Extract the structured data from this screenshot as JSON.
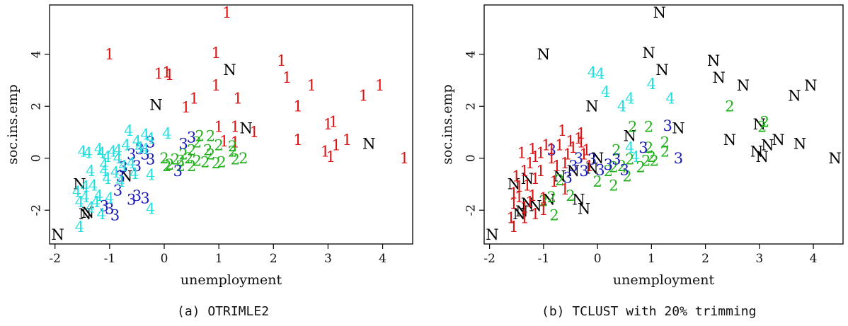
{
  "colors": {
    "1": "#dd1111",
    "2": "#22b11c",
    "3": "#1a1ab8",
    "4": "#22e0e0",
    "N": "#000000"
  },
  "captions": {
    "a": "(a)  OTRIMLE2",
    "b": "(b)  TCLUST with 20% trimming"
  },
  "chart_data": [
    {
      "type": "scatter",
      "title": "",
      "xlabel": "unemployment",
      "ylabel": "soc.ins.emp",
      "xlim": [
        -2.1,
        4.55
      ],
      "ylim": [
        -3.3,
        5.9
      ],
      "xticks": [
        -2,
        -1,
        0,
        1,
        2,
        3,
        4
      ],
      "yticks": [
        -2,
        0,
        2,
        4
      ],
      "grid": false,
      "marker": "cluster label text",
      "points": [
        [
          1.15,
          5.6,
          "1"
        ],
        [
          -1.0,
          4.0,
          "1"
        ],
        [
          0.95,
          4.05,
          "1"
        ],
        [
          2.15,
          3.75,
          "1"
        ],
        [
          -0.1,
          3.25,
          "1"
        ],
        [
          0.05,
          3.3,
          "1"
        ],
        [
          0.1,
          3.2,
          "1"
        ],
        [
          2.25,
          3.1,
          "1"
        ],
        [
          0.95,
          2.8,
          "1"
        ],
        [
          2.7,
          2.8,
          "1"
        ],
        [
          3.95,
          2.8,
          "1"
        ],
        [
          0.55,
          2.3,
          "1"
        ],
        [
          1.35,
          2.3,
          "1"
        ],
        [
          3.65,
          2.4,
          "1"
        ],
        [
          0.4,
          1.95,
          "1"
        ],
        [
          2.45,
          2.0,
          "1"
        ],
        [
          1.0,
          1.2,
          "1"
        ],
        [
          1.3,
          1.2,
          "1"
        ],
        [
          3.0,
          1.3,
          "1"
        ],
        [
          3.1,
          1.4,
          "1"
        ],
        [
          1.65,
          1.0,
          "1"
        ],
        [
          1.1,
          0.65,
          "1"
        ],
        [
          1.3,
          0.6,
          "1"
        ],
        [
          2.45,
          0.7,
          "1"
        ],
        [
          3.35,
          0.7,
          "1"
        ],
        [
          3.15,
          0.5,
          "1"
        ],
        [
          2.95,
          0.25,
          "1"
        ],
        [
          3.05,
          0.05,
          "1"
        ],
        [
          4.4,
          0.0,
          "1"
        ],
        [
          1.2,
          3.4,
          "N"
        ],
        [
          -0.15,
          2.05,
          "N"
        ],
        [
          1.5,
          1.15,
          "N"
        ],
        [
          3.75,
          0.55,
          "N"
        ],
        [
          -1.55,
          -1.0,
          "N"
        ],
        [
          -0.7,
          -0.7,
          "N"
        ],
        [
          -1.4,
          -2.1,
          "N"
        ],
        [
          -1.45,
          -2.15,
          "N"
        ],
        [
          -1.95,
          -2.95,
          "N"
        ],
        [
          0.6,
          0.6,
          "2"
        ],
        [
          0.65,
          0.85,
          "2"
        ],
        [
          0.85,
          0.85,
          "2"
        ],
        [
          1.0,
          0.5,
          "2"
        ],
        [
          1.25,
          0.45,
          "2"
        ],
        [
          1.25,
          0.25,
          "2"
        ],
        [
          0.5,
          0.3,
          "2"
        ],
        [
          0.8,
          0.3,
          "2"
        ],
        [
          0.35,
          0.15,
          "2"
        ],
        [
          0.45,
          0.0,
          "2"
        ],
        [
          0.6,
          -0.1,
          "2"
        ],
        [
          0.75,
          -0.15,
          "2"
        ],
        [
          0.3,
          -0.1,
          "2"
        ],
        [
          0.95,
          -0.2,
          "2"
        ],
        [
          1.05,
          -0.15,
          "2"
        ],
        [
          0.3,
          -0.3,
          "2"
        ],
        [
          0.5,
          -0.3,
          "2"
        ],
        [
          1.45,
          0.0,
          "2"
        ],
        [
          1.3,
          -0.05,
          "2"
        ],
        [
          0.05,
          -0.3,
          "2"
        ],
        [
          0.0,
          0.0,
          "2"
        ],
        [
          0.2,
          -0.05,
          "2"
        ],
        [
          0.85,
          0.15,
          "2"
        ],
        [
          0.1,
          -0.25,
          "2"
        ],
        [
          0.5,
          0.8,
          "3"
        ],
        [
          0.35,
          0.55,
          "3"
        ],
        [
          -0.25,
          0.6,
          "3"
        ],
        [
          -0.45,
          0.35,
          "3"
        ],
        [
          -0.35,
          0.15,
          "3"
        ],
        [
          -0.6,
          0.15,
          "3"
        ],
        [
          -0.25,
          -0.05,
          "3"
        ],
        [
          -0.75,
          -0.35,
          "3"
        ],
        [
          -0.5,
          -0.3,
          "3"
        ],
        [
          -0.8,
          -0.7,
          "3"
        ],
        [
          -0.85,
          -1.25,
          "3"
        ],
        [
          -0.5,
          -1.45,
          "3"
        ],
        [
          -0.35,
          -1.55,
          "3"
        ],
        [
          -0.6,
          -1.6,
          "3"
        ],
        [
          -1.1,
          -1.85,
          "3"
        ],
        [
          -1.0,
          -1.95,
          "3"
        ],
        [
          -0.9,
          -2.2,
          "3"
        ],
        [
          0.25,
          -0.5,
          "3"
        ],
        [
          -0.65,
          1.05,
          "4"
        ],
        [
          -0.35,
          0.9,
          "4"
        ],
        [
          0.05,
          0.95,
          "4"
        ],
        [
          -0.25,
          0.75,
          "4"
        ],
        [
          -0.5,
          0.65,
          "4"
        ],
        [
          -0.45,
          0.4,
          "4"
        ],
        [
          -0.7,
          0.5,
          "4"
        ],
        [
          -0.85,
          0.3,
          "4"
        ],
        [
          -0.95,
          0.25,
          "4"
        ],
        [
          -1.15,
          0.2,
          "4"
        ],
        [
          -1.2,
          0.35,
          "4"
        ],
        [
          -1.05,
          0.05,
          "4"
        ],
        [
          -1.4,
          0.2,
          "4"
        ],
        [
          -0.85,
          0.0,
          "4"
        ],
        [
          -0.6,
          -0.2,
          "4"
        ],
        [
          -0.75,
          -0.3,
          "4"
        ],
        [
          -1.1,
          -0.5,
          "4"
        ],
        [
          -1.35,
          -0.5,
          "4"
        ],
        [
          -1.05,
          -0.8,
          "4"
        ],
        [
          -0.8,
          -0.9,
          "4"
        ],
        [
          -1.3,
          -1.05,
          "4"
        ],
        [
          -1.45,
          -1.1,
          "4"
        ],
        [
          -1.2,
          -1.45,
          "4"
        ],
        [
          -1.45,
          -1.5,
          "4"
        ],
        [
          -1.0,
          -1.55,
          "4"
        ],
        [
          -1.25,
          -1.7,
          "4"
        ],
        [
          -1.55,
          -1.7,
          "4"
        ],
        [
          -1.35,
          -1.9,
          "4"
        ],
        [
          -1.15,
          -2.15,
          "4"
        ],
        [
          -1.55,
          -2.65,
          "4"
        ],
        [
          -0.25,
          -1.95,
          "4"
        ],
        [
          -0.55,
          -0.6,
          "4"
        ],
        [
          -0.25,
          -0.65,
          "4"
        ],
        [
          -1.5,
          0.25,
          "4"
        ],
        [
          -1.1,
          -0.25,
          "4"
        ],
        [
          -0.9,
          -0.55,
          "4"
        ],
        [
          -1.6,
          -1.3,
          "4"
        ],
        [
          -0.35,
          0.35,
          "4"
        ]
      ]
    },
    {
      "type": "scatter",
      "title": "",
      "xlabel": "unemployment",
      "ylabel": "soc.ins.emp",
      "xlim": [
        -2.1,
        4.55
      ],
      "ylim": [
        -3.3,
        5.9
      ],
      "xticks": [
        -2,
        -1,
        0,
        1,
        2,
        3,
        4
      ],
      "yticks": [
        -2,
        0,
        2,
        4
      ],
      "grid": false,
      "marker": "cluster label text",
      "points": [
        [
          1.15,
          5.6,
          "N"
        ],
        [
          -1.0,
          4.0,
          "N"
        ],
        [
          0.95,
          4.05,
          "N"
        ],
        [
          2.15,
          3.75,
          "N"
        ],
        [
          1.2,
          3.4,
          "N"
        ],
        [
          2.25,
          3.1,
          "N"
        ],
        [
          2.7,
          2.8,
          "N"
        ],
        [
          3.95,
          2.8,
          "N"
        ],
        [
          3.65,
          2.4,
          "N"
        ],
        [
          -0.1,
          2.0,
          "N"
        ],
        [
          3.0,
          1.3,
          "N"
        ],
        [
          0.6,
          0.85,
          "N"
        ],
        [
          1.5,
          1.15,
          "N"
        ],
        [
          2.45,
          0.7,
          "N"
        ],
        [
          3.35,
          0.7,
          "N"
        ],
        [
          3.15,
          0.5,
          "N"
        ],
        [
          2.95,
          0.25,
          "N"
        ],
        [
          3.05,
          0.05,
          "N"
        ],
        [
          3.75,
          0.55,
          "N"
        ],
        [
          4.4,
          0.0,
          "N"
        ],
        [
          0.0,
          0.0,
          "N"
        ],
        [
          -0.1,
          -0.4,
          "N"
        ],
        [
          -0.45,
          -0.5,
          "N"
        ],
        [
          -0.7,
          -0.7,
          "N"
        ],
        [
          -1.3,
          -0.8,
          "N"
        ],
        [
          -1.55,
          -1.0,
          "N"
        ],
        [
          -0.35,
          -1.6,
          "N"
        ],
        [
          -0.25,
          -1.95,
          "N"
        ],
        [
          -0.9,
          -1.6,
          "N"
        ],
        [
          -1.3,
          -1.75,
          "N"
        ],
        [
          -1.45,
          -2.15,
          "N"
        ],
        [
          -1.4,
          -2.05,
          "N"
        ],
        [
          -1.95,
          -2.95,
          "N"
        ],
        [
          -1.15,
          -1.85,
          "N"
        ],
        [
          0.05,
          3.25,
          "4"
        ],
        [
          -0.1,
          3.3,
          "4"
        ],
        [
          1.0,
          2.85,
          "4"
        ],
        [
          0.15,
          2.55,
          "4"
        ],
        [
          0.6,
          2.3,
          "4"
        ],
        [
          1.35,
          2.3,
          "4"
        ],
        [
          0.45,
          2.0,
          "4"
        ],
        [
          0.6,
          0.4,
          "4"
        ],
        [
          0.7,
          0.05,
          "4"
        ],
        [
          2.45,
          2.0,
          "2"
        ],
        [
          3.1,
          1.4,
          "2"
        ],
        [
          3.05,
          1.2,
          "2"
        ],
        [
          0.65,
          1.2,
          "2"
        ],
        [
          0.95,
          1.2,
          "2"
        ],
        [
          1.25,
          0.6,
          "2"
        ],
        [
          1.25,
          0.25,
          "2"
        ],
        [
          1.0,
          0.05,
          "2"
        ],
        [
          0.9,
          -0.1,
          "2"
        ],
        [
          0.6,
          -0.05,
          "2"
        ],
        [
          0.45,
          -0.3,
          "2"
        ],
        [
          0.8,
          -0.35,
          "2"
        ],
        [
          1.05,
          -0.1,
          "2"
        ],
        [
          0.35,
          0.3,
          "2"
        ],
        [
          0.55,
          -0.7,
          "2"
        ],
        [
          0.2,
          -0.5,
          "2"
        ],
        [
          0.3,
          -0.35,
          "2"
        ],
        [
          0.0,
          -0.9,
          "2"
        ],
        [
          0.3,
          -1.05,
          "2"
        ],
        [
          -0.5,
          -1.45,
          "2"
        ],
        [
          -0.85,
          -1.5,
          "2"
        ],
        [
          -0.8,
          -2.2,
          "2"
        ],
        [
          -1.0,
          -1.65,
          "2"
        ],
        [
          0.95,
          0.4,
          "2"
        ],
        [
          -0.7,
          -0.85,
          "2"
        ],
        [
          1.3,
          1.25,
          "3"
        ],
        [
          1.5,
          0.0,
          "3"
        ],
        [
          0.85,
          0.4,
          "3"
        ],
        [
          -0.85,
          0.3,
          "3"
        ],
        [
          -0.35,
          0.0,
          "3"
        ],
        [
          -0.1,
          -0.05,
          "3"
        ],
        [
          0.05,
          -0.45,
          "3"
        ],
        [
          0.2,
          -0.25,
          "3"
        ],
        [
          0.35,
          -0.05,
          "3"
        ],
        [
          0.5,
          -0.45,
          "3"
        ],
        [
          -0.45,
          -0.3,
          "3"
        ],
        [
          -0.25,
          -0.5,
          "3"
        ],
        [
          -0.55,
          -0.75,
          "3"
        ],
        [
          -0.3,
          0.95,
          "1"
        ],
        [
          -0.35,
          0.75,
          "1"
        ],
        [
          -0.5,
          0.65,
          "1"
        ],
        [
          -0.7,
          0.5,
          "1"
        ],
        [
          -0.85,
          0.35,
          "1"
        ],
        [
          -0.95,
          0.5,
          "1"
        ],
        [
          -1.05,
          0.2,
          "1"
        ],
        [
          -1.2,
          0.35,
          "1"
        ],
        [
          -1.4,
          0.2,
          "1"
        ],
        [
          -1.15,
          0.05,
          "1"
        ],
        [
          -0.85,
          0.0,
          "1"
        ],
        [
          -0.6,
          -0.2,
          "1"
        ],
        [
          -0.75,
          -0.3,
          "1"
        ],
        [
          -1.05,
          -0.5,
          "1"
        ],
        [
          -1.35,
          -0.5,
          "1"
        ],
        [
          -1.15,
          -0.8,
          "1"
        ],
        [
          -0.8,
          -0.9,
          "1"
        ],
        [
          -1.3,
          -1.05,
          "1"
        ],
        [
          -1.45,
          -1.1,
          "1"
        ],
        [
          -1.55,
          -1.35,
          "1"
        ],
        [
          -1.2,
          -1.45,
          "1"
        ],
        [
          -1.45,
          -1.5,
          "1"
        ],
        [
          -1.0,
          -1.55,
          "1"
        ],
        [
          -1.25,
          -1.7,
          "1"
        ],
        [
          -1.55,
          -1.75,
          "1"
        ],
        [
          -1.35,
          -1.9,
          "1"
        ],
        [
          -1.15,
          -2.15,
          "1"
        ],
        [
          -1.55,
          -2.65,
          "1"
        ],
        [
          -0.2,
          0.3,
          "1"
        ],
        [
          -0.45,
          0.4,
          "1"
        ],
        [
          -0.55,
          0.15,
          "1"
        ],
        [
          -0.15,
          -0.3,
          "1"
        ],
        [
          -0.25,
          0.15,
          "1"
        ],
        [
          -1.25,
          -0.2,
          "1"
        ],
        [
          -0.6,
          -1.2,
          "1"
        ],
        [
          -1.6,
          -2.3,
          "1"
        ],
        [
          -1.0,
          -2.0,
          "1"
        ],
        [
          -0.3,
          0.6,
          "1"
        ],
        [
          -0.65,
          1.05,
          "1"
        ],
        [
          -1.5,
          -0.7,
          "1"
        ],
        [
          -1.35,
          -2.3,
          "1"
        ]
      ]
    }
  ]
}
